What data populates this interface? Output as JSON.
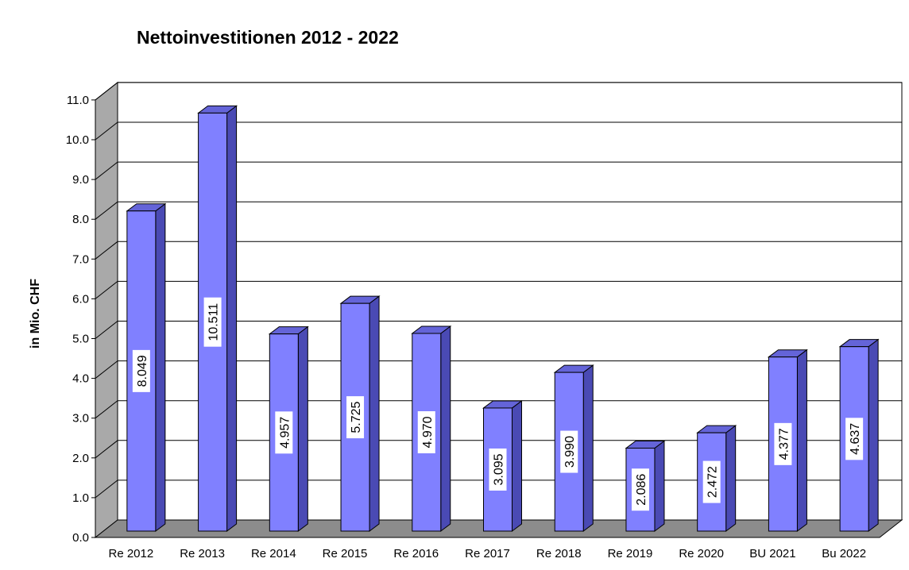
{
  "chart_data": {
    "type": "bar",
    "title": "Nettoinvestitionen 2012 - 2022",
    "xlabel": "",
    "ylabel": "in Mio. CHF",
    "categories": [
      "Re 2012",
      "Re 2013",
      "Re 2014",
      "Re 2015",
      "Re 2016",
      "Re 2017",
      "Re 2018",
      "Re 2019",
      "Re 2020",
      "BU 2021",
      "Bu 2022"
    ],
    "values": [
      8.049,
      10.511,
      4.957,
      5.725,
      4.97,
      3.095,
      3.99,
      2.086,
      2.472,
      4.377,
      4.637
    ],
    "value_labels": [
      "8.049",
      "10.511",
      "4.957",
      "5.725",
      "4.970",
      "3.095",
      "3.990",
      "2.086",
      "2.472",
      "4.377",
      "4.637"
    ],
    "yticks": [
      "0.0",
      "1.0",
      "2.0",
      "3.0",
      "4.0",
      "5.0",
      "6.0",
      "7.0",
      "8.0",
      "9.0",
      "10.0",
      "11.0"
    ],
    "ylim": [
      0,
      11
    ],
    "grid": true,
    "legend": "none",
    "colors": {
      "bar_front": "#8080ff",
      "bar_side": "#4a4ab4",
      "bar_top": "#6464d8",
      "back_wall": "#ffffff",
      "side_wall": "#a9a9a9",
      "floor": "#8c8c8c",
      "gridline": "#000000"
    }
  }
}
